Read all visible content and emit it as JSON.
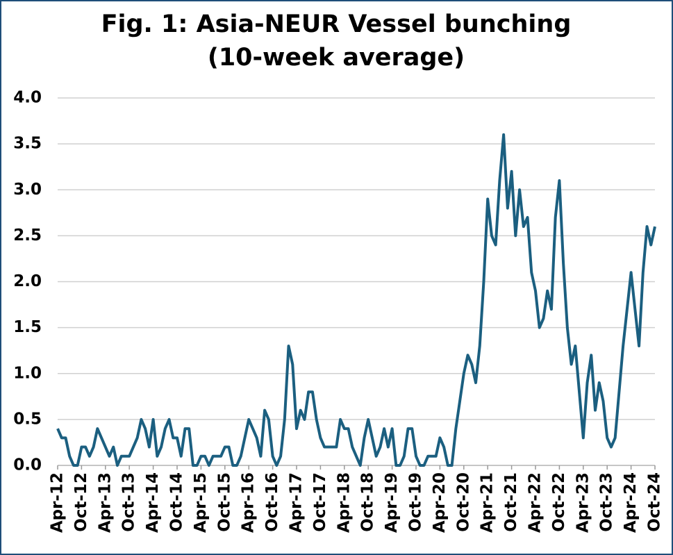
{
  "chart_data": {
    "type": "line",
    "title": "Fig. 1: Asia-NEUR Vessel bunching",
    "subtitle": "(10-week average)",
    "categories": [
      "Apr-12",
      null,
      null,
      null,
      null,
      null,
      "Oct-12",
      null,
      null,
      null,
      null,
      null,
      "Apr-13",
      null,
      null,
      null,
      null,
      null,
      "Oct-13",
      null,
      null,
      null,
      null,
      null,
      "Apr-14",
      null,
      null,
      null,
      null,
      null,
      "Oct-14",
      null,
      null,
      null,
      null,
      null,
      "Apr-15",
      null,
      null,
      null,
      null,
      null,
      "Oct-15",
      null,
      null,
      null,
      null,
      null,
      "Apr-16",
      null,
      null,
      null,
      null,
      null,
      "Oct-16",
      null,
      null,
      null,
      null,
      null,
      "Apr-17",
      null,
      null,
      null,
      null,
      null,
      "Oct-17",
      null,
      null,
      null,
      null,
      null,
      "Apr-18",
      null,
      null,
      null,
      null,
      null,
      "Oct-18",
      null,
      null,
      null,
      null,
      null,
      "Apr-19",
      null,
      null,
      null,
      null,
      null,
      "Oct-19",
      null,
      null,
      null,
      null,
      null,
      "Apr-20",
      null,
      null,
      null,
      null,
      null,
      "Oct-20",
      null,
      null,
      null,
      null,
      null,
      "Apr-21",
      null,
      null,
      null,
      null,
      null,
      "Oct-21",
      null,
      null,
      null,
      null,
      null,
      "Apr-22",
      null,
      null,
      null,
      null,
      null,
      "Oct-22",
      null,
      null,
      null,
      null,
      null,
      "Apr-23",
      null,
      null,
      null,
      null,
      null,
      "Oct-23",
      null,
      null,
      null,
      null,
      null,
      "Apr-24",
      null,
      null,
      null,
      null,
      null,
      "Oct-24"
    ],
    "values": [
      0.4,
      0.3,
      0.3,
      0.1,
      0.0,
      0.0,
      0.2,
      0.2,
      0.1,
      0.2,
      0.4,
      0.3,
      0.2,
      0.1,
      0.2,
      0.0,
      0.1,
      0.1,
      0.1,
      0.2,
      0.3,
      0.5,
      0.4,
      0.2,
      0.5,
      0.1,
      0.2,
      0.4,
      0.5,
      0.3,
      0.3,
      0.1,
      0.4,
      0.4,
      0.0,
      0.0,
      0.1,
      0.1,
      0.0,
      0.1,
      0.1,
      0.1,
      0.2,
      0.2,
      0.0,
      0.0,
      0.1,
      0.3,
      0.5,
      0.4,
      0.3,
      0.1,
      0.6,
      0.5,
      0.1,
      0.0,
      0.1,
      0.5,
      1.3,
      1.1,
      0.4,
      0.6,
      0.5,
      0.8,
      0.8,
      0.5,
      0.3,
      0.2,
      0.2,
      0.2,
      0.2,
      0.5,
      0.4,
      0.4,
      0.2,
      0.1,
      0.0,
      0.3,
      0.5,
      0.3,
      0.1,
      0.2,
      0.4,
      0.2,
      0.4,
      0.0,
      0.0,
      0.1,
      0.4,
      0.4,
      0.1,
      0.0,
      0.0,
      0.1,
      0.1,
      0.1,
      0.3,
      0.2,
      0.0,
      0.0,
      0.4,
      0.7,
      1.0,
      1.2,
      1.1,
      0.9,
      1.3,
      2.0,
      2.9,
      2.5,
      2.4,
      3.1,
      3.6,
      2.8,
      3.2,
      2.5,
      3.0,
      2.6,
      2.7,
      2.1,
      1.9,
      1.5,
      1.6,
      1.9,
      1.7,
      2.7,
      3.1,
      2.2,
      1.5,
      1.1,
      1.3,
      0.8,
      0.3,
      0.9,
      1.2,
      0.6,
      0.9,
      0.7,
      0.3,
      0.2,
      0.3,
      0.8,
      1.3,
      1.7,
      2.1,
      1.7,
      1.3,
      2.1,
      2.6,
      2.4,
      2.6
    ],
    "color": "#1b5f80",
    "ylim": [
      0,
      4
    ],
    "yticks": [
      {
        "value": 0,
        "label": "0.0"
      },
      0.5,
      {
        "value": 1,
        "label": "1.0"
      },
      1.5,
      {
        "value": 2,
        "label": "2.0"
      },
      2.5,
      {
        "value": 3,
        "label": "3.0"
      },
      3.5,
      {
        "value": 4,
        "label": "4.0"
      }
    ],
    "grid": true
  }
}
